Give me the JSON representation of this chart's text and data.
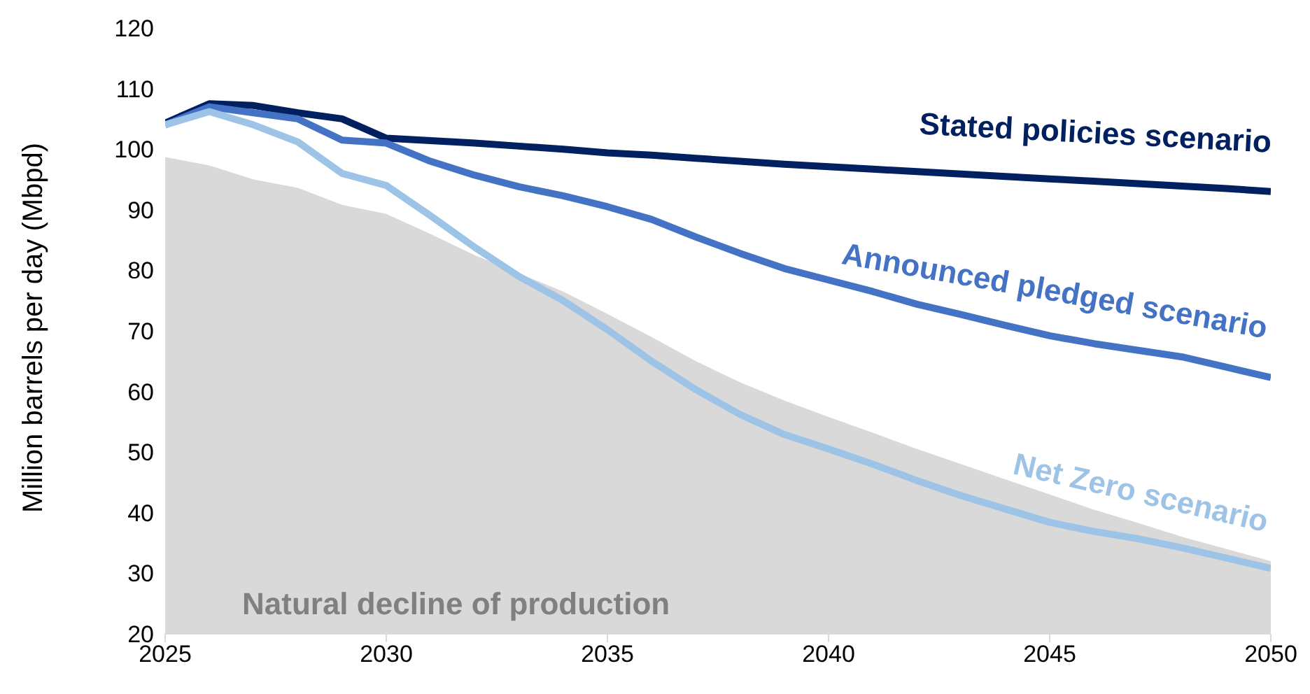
{
  "chart_data": {
    "type": "line",
    "ylabel": "Million barrels per day (Mbpd)",
    "x": [
      2025,
      2026,
      2027,
      2028,
      2029,
      2030,
      2031,
      2032,
      2033,
      2034,
      2035,
      2036,
      2037,
      2038,
      2039,
      2040,
      2041,
      2042,
      2043,
      2044,
      2045,
      2046,
      2047,
      2048,
      2049,
      2050
    ],
    "xlim": [
      2025,
      2050
    ],
    "xticks": [
      2025,
      2030,
      2035,
      2040,
      2045,
      2050
    ],
    "ylim": [
      20,
      120
    ],
    "yticks": [
      20,
      30,
      40,
      50,
      60,
      70,
      80,
      90,
      100,
      110,
      120
    ],
    "grid": false,
    "legend": false,
    "marker": "none",
    "line_style": "solid",
    "series": [
      {
        "name": "Natural decline of production",
        "type": "area",
        "color": "#d9d9d9",
        "values": [
          98.7,
          97.3,
          95,
          93.6,
          90.8,
          89.3,
          86,
          82.5,
          79.5,
          76.5,
          72.8,
          69,
          65,
          61.5,
          58.5,
          55.8,
          53.2,
          50.5,
          48,
          45.5,
          43,
          40.5,
          38.3,
          36,
          34,
          32
        ]
      },
      {
        "name": "Stated policies scenario",
        "color": "#002060",
        "values": [
          104.3,
          107.5,
          107.2,
          106,
          105,
          101.8,
          101.4,
          101,
          100.5,
          100,
          99.4,
          99,
          98.5,
          98,
          97.5,
          97.1,
          96.7,
          96.3,
          95.9,
          95.5,
          95.1,
          94.7,
          94.3,
          93.9,
          93.5,
          93
        ]
      },
      {
        "name": "Announced pledged scenario",
        "color": "#4472c4",
        "values": [
          104,
          107,
          106,
          105,
          101.5,
          101,
          98,
          95.7,
          93.8,
          92.3,
          90.5,
          88.4,
          85.5,
          82.8,
          80.3,
          78.4,
          76.5,
          74.4,
          72.7,
          70.9,
          69.2,
          67.9,
          66.8,
          65.7,
          64,
          62.3
        ]
      },
      {
        "name": "Net Zero scenario",
        "color": "#9dc3e6",
        "values": [
          104,
          106.2,
          104,
          101.2,
          96,
          94,
          89,
          83.8,
          79,
          75,
          70.2,
          65,
          60.3,
          56.2,
          52.9,
          50.5,
          48,
          45.3,
          42.8,
          40.6,
          38.4,
          36.9,
          35.7,
          34.2,
          32.5,
          30.8
        ]
      }
    ]
  }
}
